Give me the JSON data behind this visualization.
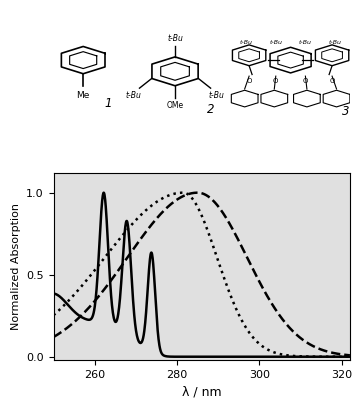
{
  "xlim": [
    250,
    322
  ],
  "ylim": [
    -0.02,
    1.12
  ],
  "xlabel": "λ / nm",
  "ylabel": "Normalized Absorption",
  "xticks": [
    260,
    280,
    300,
    320
  ],
  "yticks": [
    0.0,
    0.5,
    1.0
  ],
  "ax_facecolor": "#e0e0e0",
  "fig_facecolor": "#ffffff",
  "curve1_lw": 1.8,
  "curve2_lw": 1.8,
  "curve3_lw": 1.8,
  "tick_fontsize": 8,
  "xlabel_fontsize": 9,
  "ylabel_fontsize": 8
}
